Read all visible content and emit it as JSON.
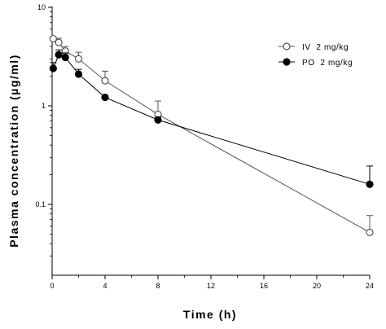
{
  "chart_data": {
    "type": "line",
    "xlabel": "Time (h)",
    "ylabel": "Plasma concentration (µg/ml)",
    "xlim": [
      0,
      24
    ],
    "ylim": [
      0.03,
      10
    ],
    "y_scale": "log",
    "x_ticks": [
      0,
      4,
      8,
      12,
      16,
      20,
      24
    ],
    "x_minor_ticks": [
      2,
      6,
      10,
      14,
      18,
      22
    ],
    "y_ticks": [
      {
        "value": 10,
        "label": "10"
      },
      {
        "value": 1,
        "label": "1"
      },
      {
        "value": 0.1,
        "label": "0.1"
      }
    ],
    "grid": false,
    "legend": "top-right",
    "series": [
      {
        "name": "IV  2 mg/kg",
        "marker": "open-circle",
        "color": "#555555",
        "x": [
          0.083,
          0.5,
          1,
          2,
          4,
          8,
          24
        ],
        "y": [
          4.8,
          4.4,
          3.6,
          3.0,
          1.8,
          0.82,
          0.052
        ],
        "err_up": [
          0.2,
          0.45,
          0.4,
          0.5,
          0.45,
          0.3,
          0.025
        ]
      },
      {
        "name": "PO  2 mg/kg",
        "marker": "filled-circle",
        "color": "#000000",
        "x": [
          0.083,
          0.5,
          1,
          2,
          4,
          8,
          24
        ],
        "y": [
          2.4,
          3.3,
          3.1,
          2.1,
          1.22,
          0.72,
          0.16
        ],
        "err_up": [
          0.35,
          0.4,
          0.35,
          0.25,
          0.05,
          0.05,
          0.085
        ]
      }
    ]
  }
}
